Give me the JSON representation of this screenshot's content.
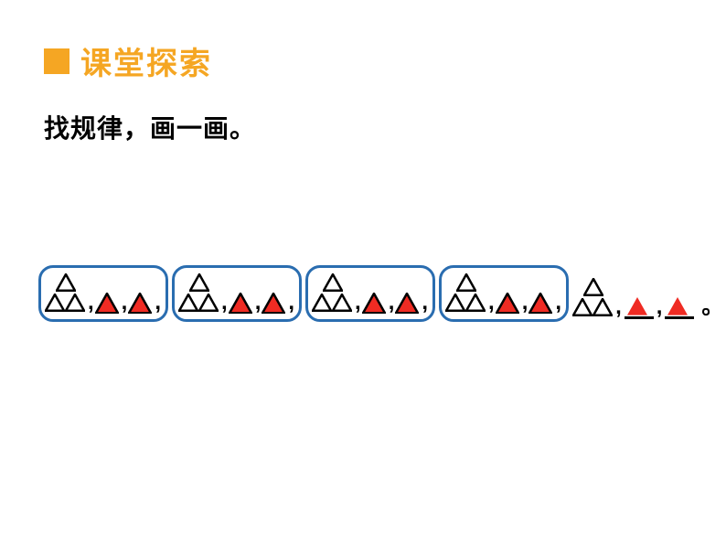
{
  "header": {
    "bullet_color": "#f5a623",
    "title": "课堂探索",
    "title_color": "#f5a623"
  },
  "subtitle": "找规律，画一画。",
  "pattern": {
    "group_border_color": "#2a6db0",
    "triangle_outline_color": "#000000",
    "triangle_fill_red": "#ef2b23",
    "triangle_fill_white": "#ffffff",
    "groups": 4,
    "group_slots": [
      {
        "type": "pyramid3",
        "fill": "white"
      },
      {
        "type": "single",
        "fill": "red"
      },
      {
        "type": "single",
        "fill": "red"
      }
    ],
    "tail": {
      "pyramid": {
        "type": "pyramid3",
        "fill": "white"
      },
      "blanks": [
        {
          "answer_fill": "red"
        },
        {
          "answer_fill": "red"
        }
      ]
    },
    "period": "。"
  }
}
